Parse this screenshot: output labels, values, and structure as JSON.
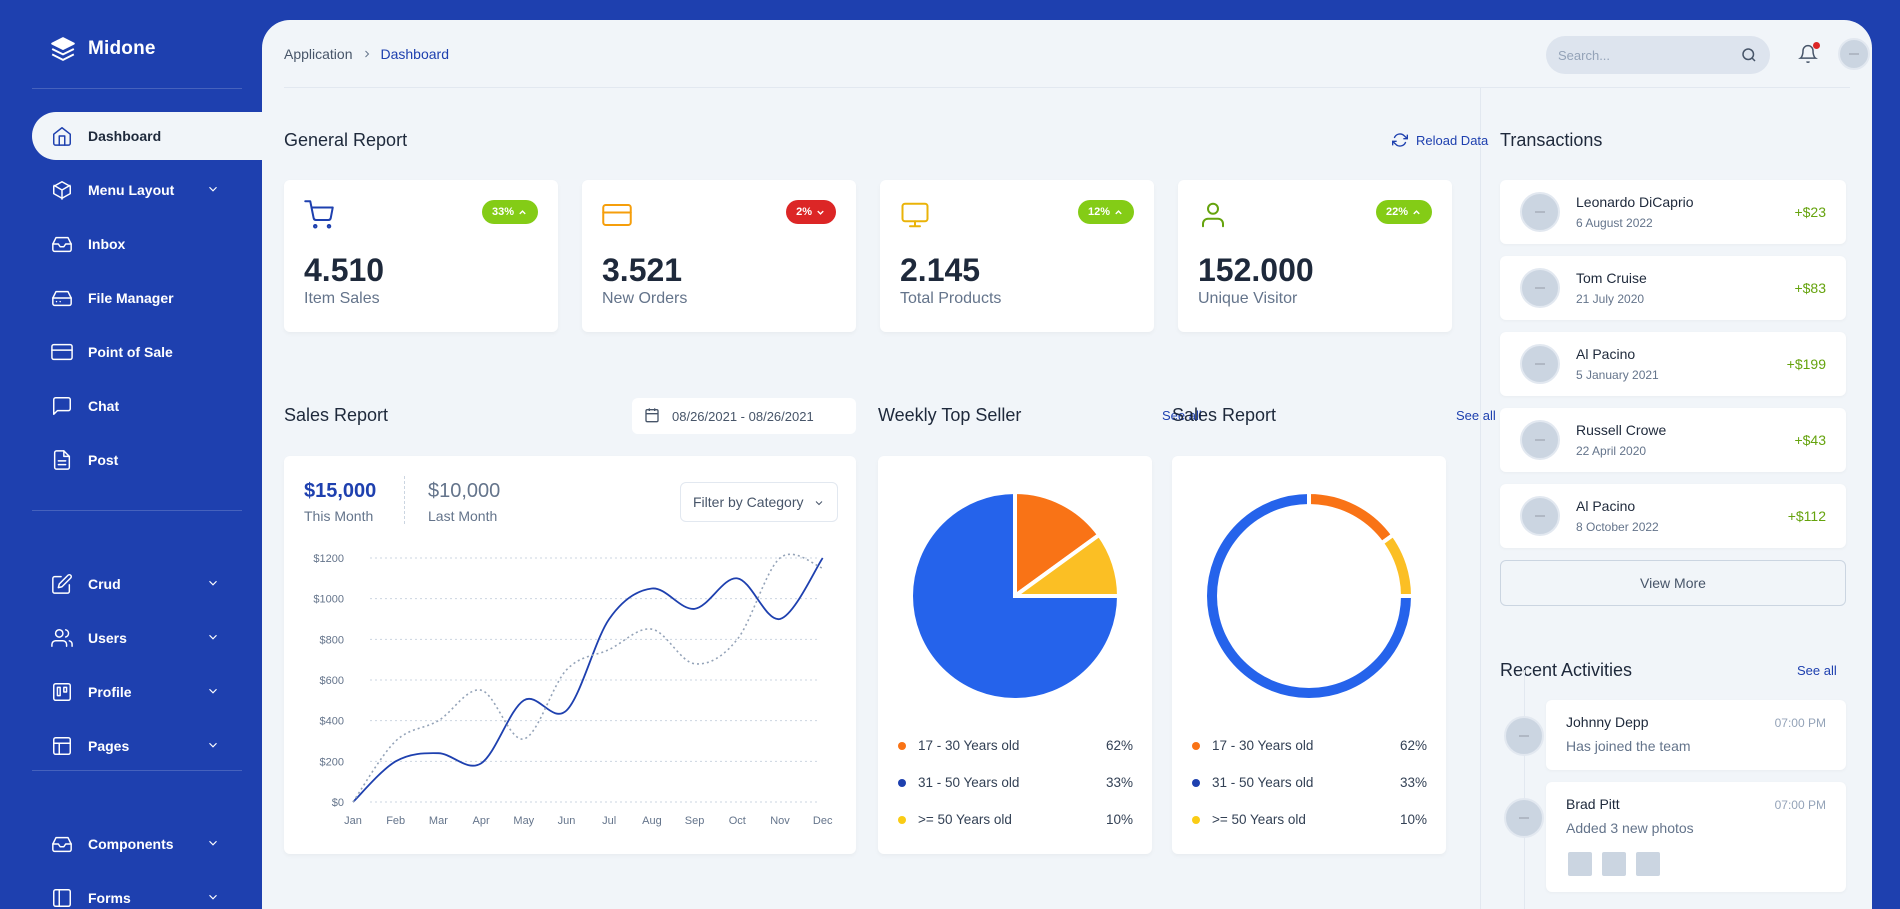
{
  "app": {
    "name": "Midone"
  },
  "sidebar": {
    "items": [
      {
        "label": "Dashboard",
        "icon": "home-icon",
        "active": true
      },
      {
        "label": "Menu Layout",
        "icon": "box-icon",
        "has_sub": true
      },
      {
        "label": "Inbox",
        "icon": "inbox-icon"
      },
      {
        "label": "File Manager",
        "icon": "hard-drive-icon"
      },
      {
        "label": "Point of Sale",
        "icon": "credit-card-icon"
      },
      {
        "label": "Chat",
        "icon": "message-square-icon"
      },
      {
        "label": "Post",
        "icon": "file-text-icon"
      },
      {
        "label": "Crud",
        "icon": "edit-icon",
        "has_sub": true
      },
      {
        "label": "Users",
        "icon": "users-icon",
        "has_sub": true
      },
      {
        "label": "Profile",
        "icon": "trello-icon",
        "has_sub": true
      },
      {
        "label": "Pages",
        "icon": "layout-icon",
        "has_sub": true
      },
      {
        "label": "Components",
        "icon": "inbox-icon",
        "has_sub": true
      },
      {
        "label": "Forms",
        "icon": "sidebar-icon",
        "has_sub": true
      }
    ]
  },
  "topbar": {
    "breadcrumb": [
      "Application",
      "Dashboard"
    ],
    "search_placeholder": "Search..."
  },
  "general_report": {
    "title": "General Report",
    "reload_label": "Reload Data",
    "stats": [
      {
        "value": "4.510",
        "label": "Item Sales",
        "badge": "33%",
        "trend": "up",
        "badge_color": "#84cc16",
        "icon": "shopping-cart-icon",
        "icon_color": "#1e40af"
      },
      {
        "value": "3.521",
        "label": "New Orders",
        "badge": "2%",
        "trend": "down",
        "badge_color": "#dc2626",
        "icon": "credit-card-icon",
        "icon_color": "#f59e0b"
      },
      {
        "value": "2.145",
        "label": "Total Products",
        "badge": "12%",
        "trend": "up",
        "badge_color": "#84cc16",
        "icon": "monitor-icon",
        "icon_color": "#eab308"
      },
      {
        "value": "152.000",
        "label": "Unique Visitor",
        "badge": "22%",
        "trend": "up",
        "badge_color": "#84cc16",
        "icon": "user-icon",
        "icon_color": "#65a30d"
      }
    ]
  },
  "sales_report": {
    "title": "Sales Report",
    "date_range": "08/26/2021 - 08/26/2021",
    "this_month_value": "$15,000",
    "this_month_label": "This Month",
    "last_month_value": "$10,000",
    "last_month_label": "Last Month",
    "filter_label": "Filter by Category"
  },
  "weekly_top_seller": {
    "title": "Weekly Top Seller",
    "see_all": "See all"
  },
  "sales_report_2": {
    "title": "Sales Report",
    "see_all": "See all"
  },
  "legend": [
    {
      "label": "17 - 30 Years old",
      "pct": "62%",
      "color": "#f97316"
    },
    {
      "label": "31 - 50 Years old",
      "pct": "33%",
      "color": "#1e40af"
    },
    {
      "label": ">= 50 Years old",
      "pct": "10%",
      "color": "#facc15"
    }
  ],
  "chart_data": [
    {
      "type": "line",
      "categories": [
        "Jan",
        "Feb",
        "Mar",
        "Apr",
        "May",
        "Jun",
        "Jul",
        "Aug",
        "Sep",
        "Oct",
        "Nov",
        "Dec"
      ],
      "y_ticks": [
        "$0",
        "$200",
        "$400",
        "$600",
        "$800",
        "$1000",
        "$1200"
      ],
      "ylim": [
        0,
        1200
      ],
      "series": [
        {
          "color": "#1e40af",
          "style": "solid",
          "values": [
            0,
            200,
            240,
            190,
            500,
            450,
            900,
            1050,
            950,
            1100,
            900,
            1200
          ]
        },
        {
          "color": "#94a3b8",
          "style": "dotted",
          "values": [
            0,
            300,
            400,
            550,
            310,
            650,
            750,
            850,
            680,
            800,
            1200,
            1150
          ]
        }
      ]
    },
    {
      "type": "pie",
      "slices": [
        {
          "value": 15,
          "color": "#f97316"
        },
        {
          "value": 10,
          "color": "#fbbf24"
        },
        {
          "value": 75,
          "color": "#2563eb"
        }
      ]
    },
    {
      "type": "pie",
      "donut": true,
      "slices": [
        {
          "value": 15,
          "color": "#f97316"
        },
        {
          "value": 10,
          "color": "#fbbf24"
        },
        {
          "value": 75,
          "color": "#2563eb"
        }
      ]
    }
  ],
  "transactions": {
    "title": "Transactions",
    "items": [
      {
        "name": "Leonardo DiCaprio",
        "date": "6 August 2022",
        "amount": "+$23"
      },
      {
        "name": "Tom Cruise",
        "date": "21 July 2020",
        "amount": "+$83"
      },
      {
        "name": "Al Pacino",
        "date": "5 January 2021",
        "amount": "+$199"
      },
      {
        "name": "Russell Crowe",
        "date": "22 April 2020",
        "amount": "+$43"
      },
      {
        "name": "Al Pacino",
        "date": "8 October 2022",
        "amount": "+$112"
      }
    ],
    "view_more": "View More"
  },
  "recent_activities": {
    "title": "Recent Activities",
    "see_all": "See all",
    "items": [
      {
        "name": "Johnny Depp",
        "time": "07:00 PM",
        "desc": "Has joined the team"
      },
      {
        "name": "Brad Pitt",
        "time": "07:00 PM",
        "desc": "Added 3 new photos"
      }
    ]
  }
}
